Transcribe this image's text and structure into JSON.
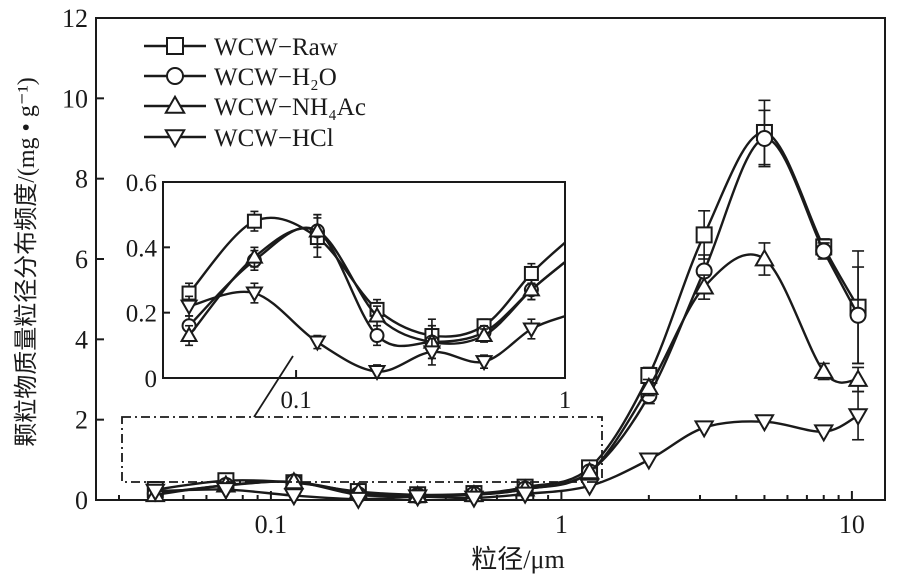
{
  "chart_data": {
    "type": "line",
    "xscale": "log",
    "xlabel": "粒径/μm",
    "ylabel": "颗粒物质量粒径分布频度/(mg • g⁻¹)",
    "xlim": [
      0.025,
      13
    ],
    "ylim": [
      0,
      12
    ],
    "xticks": [
      0.1,
      1,
      10
    ],
    "xtick_labels": [
      "0.1",
      "1",
      "10"
    ],
    "yticks": [
      0,
      2,
      4,
      6,
      8,
      10,
      12
    ],
    "ytick_labels": [
      "0",
      "2",
      "4",
      "6",
      "8",
      "10",
      "12"
    ],
    "grid": false,
    "legend_position": "top-left",
    "x": [
      0.04,
      0.07,
      0.12,
      0.2,
      0.32,
      0.5,
      0.75,
      1.25,
      2.0,
      3.1,
      5.0,
      8.0,
      10.5
    ],
    "series": [
      {
        "name": "WCW−Raw",
        "marker": "square",
        "values": [
          0.26,
          0.48,
          0.43,
          0.21,
          0.13,
          0.16,
          0.32,
          0.8,
          3.1,
          6.6,
          9.15,
          6.3,
          4.8
        ],
        "errors": [
          0.03,
          0.03,
          0.06,
          0.03,
          0.05,
          0.02,
          0.03,
          0.1,
          0.2,
          0.6,
          0.8,
          0.2,
          1.4
        ]
      },
      {
        "name": "WCW−H₂O",
        "marker": "circle",
        "values": [
          0.16,
          0.36,
          0.45,
          0.13,
          0.11,
          0.14,
          0.27,
          0.7,
          2.6,
          5.7,
          9.0,
          6.2,
          4.6
        ],
        "errors": [
          0.03,
          0.03,
          0.05,
          0.03,
          0.05,
          0.02,
          0.03,
          0.1,
          0.2,
          0.4,
          0.7,
          0.2,
          1.2
        ]
      },
      {
        "name": "WCW−NH₄Ac",
        "marker": "triangle-up",
        "values": [
          0.13,
          0.37,
          0.45,
          0.19,
          0.11,
          0.13,
          0.27,
          0.7,
          2.8,
          5.3,
          6.0,
          3.2,
          3.0
        ],
        "errors": [
          0.03,
          0.03,
          0.05,
          0.03,
          0.05,
          0.02,
          0.03,
          0.1,
          0.2,
          0.3,
          0.4,
          0.2,
          0.3
        ]
      },
      {
        "name": "WCW−HCl",
        "marker": "triangle-down",
        "values": [
          0.22,
          0.26,
          0.11,
          0.02,
          0.08,
          0.05,
          0.15,
          0.35,
          1.0,
          1.8,
          1.95,
          1.7,
          2.1
        ],
        "errors": [
          0.03,
          0.03,
          0.02,
          0.02,
          0.04,
          0.02,
          0.03,
          0.1,
          0.1,
          0.1,
          0.1,
          0.1,
          0.6
        ]
      }
    ],
    "inset": {
      "xlim": [
        0.032,
        1.0
      ],
      "ylim": [
        0,
        0.6
      ],
      "xticks": [
        0.1,
        1
      ],
      "xtick_labels": [
        "0.1",
        "1"
      ],
      "yticks": [
        0,
        0.2,
        0.4,
        0.6
      ],
      "ytick_labels": [
        "0",
        "0.2",
        "0.4",
        "0.6"
      ],
      "x_points_max": 0.75,
      "x_curve_max": 1.0
    }
  }
}
